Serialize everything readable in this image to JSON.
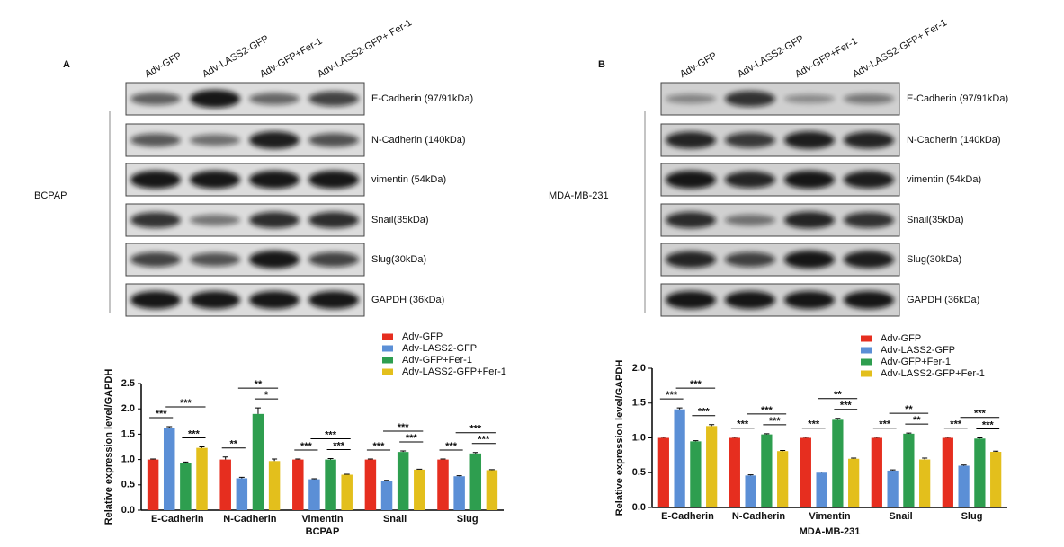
{
  "panels": [
    {
      "label": "A",
      "cell_line": "BCPAP",
      "lanes": [
        "Adv-GFP",
        "Adv-LASS2-GFP",
        "Adv-GFP+Fer-1",
        "Adv-LASS2-GFP+ Fer-1"
      ],
      "bands": [
        "E-Cadherin (97/91kDa)",
        "N-Cadherin (140kDa)",
        "vimentin (54kDa)",
        "Snail(35kDa)",
        "Slug(30kDa)",
        "GAPDH (36kDa)"
      ]
    },
    {
      "label": "B",
      "cell_line": "MDA-MB-231",
      "lanes": [
        "Adv-GFP",
        "Adv-LASS2-GFP",
        "Adv-GFP+Fer-1",
        "Adv-LASS2-GFP+ Fer-1"
      ],
      "bands": [
        "E-Cadherin (97/91kDa)",
        "N-Cadherin (140kDa)",
        "vimentin (54kDa)",
        "Snail(35kDa)",
        "Slug(30kDa)",
        "GAPDH (36kDa)"
      ]
    }
  ],
  "chart_data": [
    {
      "type": "bar",
      "x_label": "BCPAP",
      "y_label": "Relative expression level/GAPDH",
      "categories": [
        "E-Cadherin",
        "N-Cadherin",
        "Vimentin",
        "Snail",
        "Slug"
      ],
      "series": [
        {
          "name": "Adv-GFP",
          "color": "#e62e1f",
          "values": [
            1.0,
            1.0,
            1.0,
            1.0,
            1.0
          ],
          "errors": [
            0.01,
            0.05,
            0.01,
            0.01,
            0.01
          ]
        },
        {
          "name": "Adv-LASS2-GFP",
          "color": "#5b8fd6",
          "values": [
            1.63,
            0.63,
            0.61,
            0.58,
            0.67
          ],
          "errors": [
            0.02,
            0.02,
            0.01,
            0.01,
            0.01
          ]
        },
        {
          "name": "Adv-GFP+Fer-1",
          "color": "#2e9e4f",
          "values": [
            0.93,
            1.9,
            1.0,
            1.15,
            1.12
          ],
          "errors": [
            0.02,
            0.12,
            0.02,
            0.02,
            0.02
          ]
        },
        {
          "name": "Adv-LASS2-GFP+Fer-1",
          "color": "#e3bf1c",
          "values": [
            1.23,
            0.97,
            0.7,
            0.8,
            0.79
          ],
          "errors": [
            0.02,
            0.04,
            0.01,
            0.01,
            0.01
          ]
        }
      ],
      "significance": [
        [
          "***",
          "***",
          "***"
        ],
        [
          "**",
          "**",
          "*"
        ],
        [
          "***",
          "***",
          "***"
        ],
        [
          "***",
          "***",
          "***"
        ],
        [
          "***",
          "***",
          "***"
        ]
      ],
      "ylim": [
        0,
        2.5
      ],
      "yticks": [
        {
          "value": 0,
          "label": "0.0"
        },
        0.5,
        {
          "value": 1,
          "label": "1.0"
        },
        1.5,
        {
          "value": 2,
          "label": "2.0"
        },
        2.5
      ]
    },
    {
      "type": "bar",
      "x_label": "MDA-MB-231",
      "y_label": "Relative expression level/GAPDH",
      "categories": [
        "E-Cadherin",
        "N-Cadherin",
        "Vimentin",
        "Snail",
        "Slug"
      ],
      "series": [
        {
          "name": "Adv-GFP",
          "color": "#e62e1f",
          "values": [
            1.0,
            1.0,
            1.0,
            1.0,
            1.0
          ],
          "errors": [
            0.01,
            0.01,
            0.01,
            0.01,
            0.01
          ]
        },
        {
          "name": "Adv-LASS2-GFP",
          "color": "#5b8fd6",
          "values": [
            1.41,
            0.46,
            0.5,
            0.53,
            0.6
          ],
          "errors": [
            0.02,
            0.01,
            0.01,
            0.01,
            0.01
          ]
        },
        {
          "name": "Adv-GFP+Fer-1",
          "color": "#2e9e4f",
          "values": [
            0.95,
            1.05,
            1.26,
            1.06,
            0.99
          ],
          "errors": [
            0.01,
            0.01,
            0.02,
            0.01,
            0.01
          ]
        },
        {
          "name": "Adv-LASS2-GFP+Fer-1",
          "color": "#e3bf1c",
          "values": [
            1.17,
            0.81,
            0.7,
            0.69,
            0.8
          ],
          "errors": [
            0.02,
            0.01,
            0.01,
            0.02,
            0.01
          ]
        }
      ],
      "significance": [
        [
          "***",
          "***",
          "***"
        ],
        [
          "***",
          "***",
          "***"
        ],
        [
          "***",
          "**",
          "***"
        ],
        [
          "***",
          "**",
          "**"
        ],
        [
          "***",
          "***",
          "***"
        ]
      ],
      "ylim": [
        0,
        2.0
      ],
      "yticks": [
        {
          "value": 0,
          "label": "0.0"
        },
        0.5,
        {
          "value": 1,
          "label": "1.0"
        },
        1.5,
        {
          "value": 2,
          "label": "2.0"
        }
      ]
    }
  ]
}
